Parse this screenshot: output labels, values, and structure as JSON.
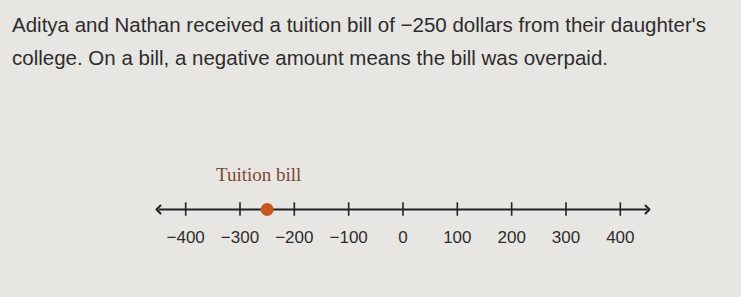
{
  "problem": {
    "text": "Aditya and Nathan received a tuition bill of −250 dollars from their daughter's college. On a bill, a negative amount means the bill was overpaid."
  },
  "chart_data": {
    "type": "number_line",
    "title": "Tuition bill",
    "x": [
      -250
    ],
    "color": "#c9561f",
    "xlim": [
      -450,
      450
    ],
    "xticks": [
      -400,
      -300,
      -200,
      -100,
      0,
      100,
      200,
      300,
      400
    ]
  }
}
